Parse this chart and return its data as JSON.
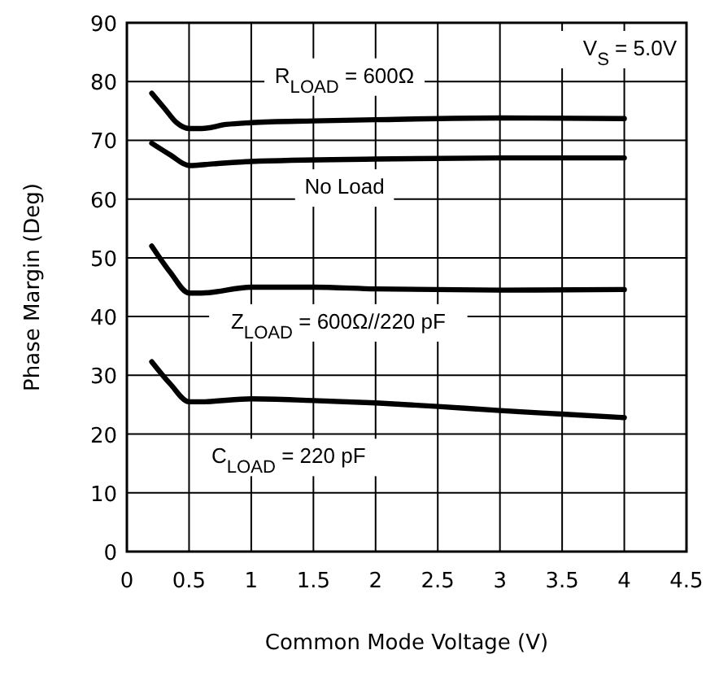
{
  "chart_data": {
    "type": "line",
    "xlabel": "Common Mode Voltage (V)",
    "ylabel": "Phase Margin (Deg)",
    "xlim": [
      0,
      4.5
    ],
    "xticks": [
      0,
      0.5,
      1,
      1.5,
      2,
      2.5,
      3,
      3.5,
      4,
      4.5
    ],
    "ylim": [
      0,
      90
    ],
    "yticks": [
      0,
      10,
      20,
      30,
      40,
      50,
      60,
      70,
      80,
      90
    ],
    "grid": true,
    "line_style": "solid",
    "annotations": [
      "V$_{S}$ = 5.0V"
    ],
    "series": [
      {
        "name": "R$_{LOAD}$ = 600Ω",
        "color": "#000000",
        "x": [
          0.2,
          0.3,
          0.4,
          0.5,
          0.6,
          0.8,
          1,
          1.5,
          2,
          3,
          4
        ],
        "values": [
          78,
          75.5,
          73,
          72,
          72,
          72.7,
          73,
          73.3,
          73.5,
          73.8,
          73.7
        ]
      },
      {
        "name": "No Load",
        "color": "#000000",
        "x": [
          0.2,
          0.35,
          0.5,
          0.7,
          1,
          2,
          3,
          4
        ],
        "values": [
          69.5,
          67.5,
          65.7,
          66,
          66.4,
          66.8,
          67,
          67
        ]
      },
      {
        "name": "Z$_{LOAD}$ = 600Ω//220 pF",
        "color": "#000000",
        "x": [
          0.2,
          0.35,
          0.5,
          0.6,
          1,
          1.5,
          2,
          3,
          4
        ],
        "values": [
          52,
          47.5,
          44,
          44,
          45,
          45,
          44.7,
          44.5,
          44.6
        ]
      },
      {
        "name": "C$_{LOAD}$ = 220 pF",
        "color": "#000000",
        "x": [
          0.2,
          0.35,
          0.5,
          0.6,
          1,
          1.5,
          2,
          2.5,
          3,
          3.5,
          4
        ],
        "values": [
          32.3,
          28.5,
          25.5,
          25.5,
          26,
          25.7,
          25.3,
          24.7,
          24,
          23.4,
          22.8
        ]
      }
    ]
  }
}
